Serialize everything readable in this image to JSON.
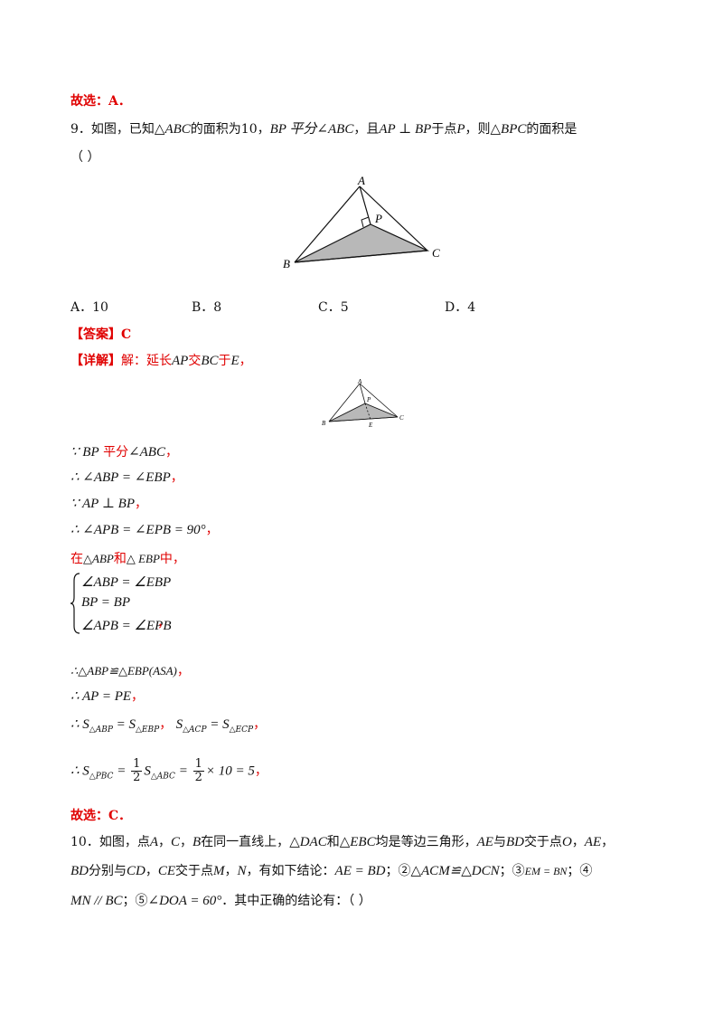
{
  "prev_choice": "故选：A．",
  "q9": {
    "stem_prefix": "9．如图，已知",
    "tri_abc": "△ABC",
    "stem_mid1": "的面积为10，",
    "bp_bisect": "BP 平分∠ABC",
    "stem_mid2": "，且",
    "ap_perp": "AP ⊥ BP",
    "stem_mid3": "于点",
    "point_p": "P",
    "stem_mid4": "，则",
    "tri_bpc": "△BPC",
    "stem_end": "的面积是",
    "blank": "（          ）",
    "figure_labels": {
      "A": "A",
      "B": "B",
      "C": "C",
      "P": "P"
    },
    "small_figure_labels": {
      "A": "A",
      "B": "B",
      "C": "C",
      "P": "P",
      "E": "E"
    },
    "options": [
      "A．10",
      "B．8",
      "C．5",
      "D．4"
    ],
    "answer_label": "【答案】",
    "answer": "C",
    "detail_label": "【详解】",
    "detail_intro_1": "解：延长",
    "detail_ap": "AP",
    "detail_intro_2": "交",
    "detail_bc": "BC",
    "detail_intro_3": "于",
    "detail_e": "E",
    "detail_intro_4": "，",
    "steps": {
      "s1_math": "∵ BP",
      "s1_red": " 平分",
      "s1_math2": "∠ABC",
      "s1_end": "，",
      "s2_math": "∴ ∠ABP = ∠EBP",
      "s2_end": "，",
      "s3_math": "∵ AP ⊥ BP",
      "s3_end": "，",
      "s4_math": "∴ ∠APB = ∠EPB = 90°",
      "s4_end": "，",
      "s5_red1": "在",
      "s5_tri1": "△ABP",
      "s5_red2": "和",
      "s5_tri2": "△ EBP",
      "s5_red3": "中，",
      "brace": [
        "∠ABP = ∠EBP",
        "BP = BP",
        "∠APB = ∠EPB"
      ],
      "brace_end": "，",
      "s6_math": "∴△ABP≌△EBP(ASA)",
      "s6_end": "，",
      "s7_math": "∴ AP = PE",
      "s7_end": "，",
      "s8_a": "∴ S",
      "s8_a_sub": "△ABP",
      "s8_b": " = S",
      "s8_b_sub": "△EBP",
      "s8_sep": "，",
      "s8_c": "S",
      "s8_c_sub": "△ACP",
      "s8_d": " = S",
      "s8_d_sub": "△ECP",
      "s8_end": "，",
      "s9_a": "∴ S",
      "s9_a_sub": "△PBC",
      "s9_eq": " = ",
      "frac_num": "1",
      "frac_den": "2",
      "s9_b": "S",
      "s9_b_sub": "△ABC",
      "s9_eq2": " = ",
      "s9_tail": "× 10 = 5",
      "s9_end": "，"
    },
    "final_choice": "故选：C．"
  },
  "q10": {
    "line1_a": "10．如图，点",
    "line1_A": "A",
    "line1_sep1": "，",
    "line1_C": "C",
    "line1_sep2": "，",
    "line1_B": "B",
    "line1_b": "在同一直线上，",
    "line1_dac": "△DAC",
    "line1_c": "和",
    "line1_ebc": "△EBC",
    "line1_d": "均是等边三角形，",
    "line1_ae": "AE",
    "line1_e": "与",
    "line1_bd": "BD",
    "line1_f": "交于点",
    "line1_o": "O",
    "line1_g": "，",
    "line1_ae2": "AE",
    "line1_h": "，",
    "line2_bd": "BD",
    "line2_a": "分别与",
    "line2_cd": "CD",
    "line2_b": "，",
    "line2_ce": "CE",
    "line2_c": "交于点",
    "line2_m": "M",
    "line2_d": "，",
    "line2_n": "N",
    "line2_e": "，有如下结论：",
    "line2_c1": "AE = BD",
    "line2_f": "；②",
    "line2_c2": "△ACM≌△DCN",
    "line2_g": "；③",
    "line2_c3": "EM = BN",
    "line2_h": "；④",
    "line3_c4": "MN // BC",
    "line3_a": "；⑤",
    "line3_c5": "∠DOA = 60°",
    "line3_b": "．其中正确的结论有：（     ）"
  }
}
